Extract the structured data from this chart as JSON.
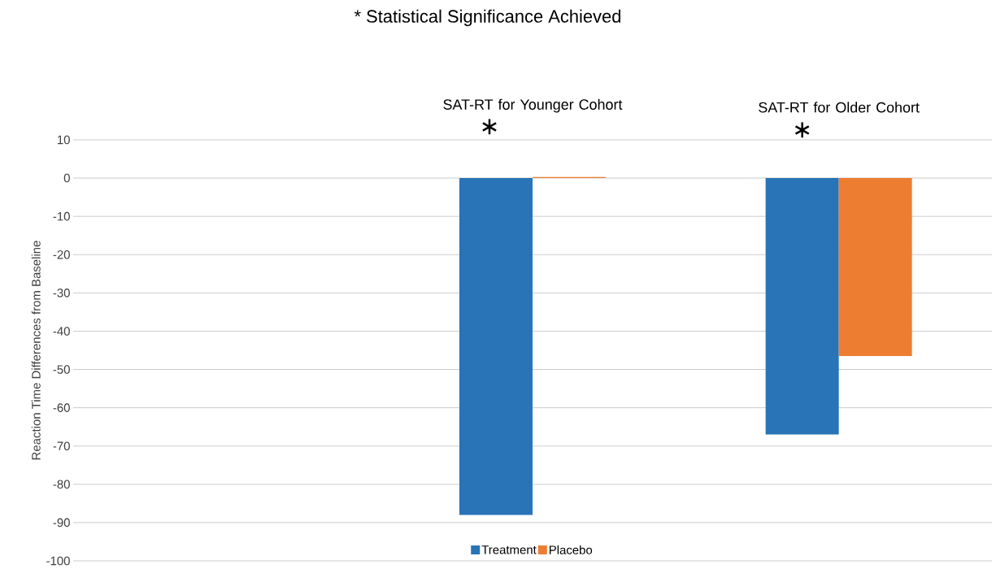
{
  "chart_data": {
    "type": "bar",
    "title": "* Statistical Significance Achieved",
    "ylabel": "Reaction Time Differences from Baseline",
    "categories": [
      null,
      "SAT-RT for Younger Cohort",
      "SAT-RT for Older Cohort"
    ],
    "series": [
      {
        "name": "Treatment",
        "color": "#2874b7",
        "values": [
          null,
          -88,
          -67
        ]
      },
      {
        "name": "Placebo",
        "color": "#ed7d31",
        "values": [
          null,
          0.3,
          -46.5
        ]
      }
    ],
    "annotations": [
      "∗",
      "∗"
    ],
    "ylim": [
      -100,
      10
    ],
    "yticks": [
      -100,
      -90,
      -80,
      -70,
      -60,
      -50,
      -40,
      -30,
      -20,
      -10,
      0,
      10
    ],
    "grid": "y",
    "legend": "bottom"
  }
}
